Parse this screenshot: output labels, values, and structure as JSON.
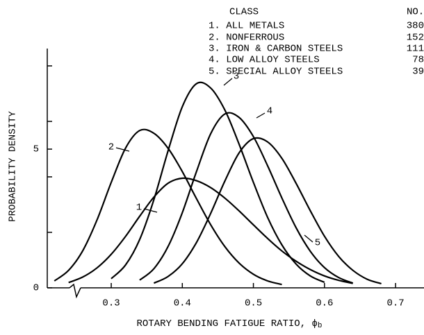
{
  "chart_data": {
    "type": "line",
    "xlabel": "ROTARY BENDING FATIGUE RATIO, ϕ",
    "xlabel_subscript": "b",
    "ylabel": "PROBABILITY DENSITY",
    "legend_header": {
      "class": "CLASS",
      "count": "NO."
    },
    "x": [
      0.22,
      0.24,
      0.26,
      0.28,
      0.3,
      0.32,
      0.34,
      0.36,
      0.38,
      0.4,
      0.42,
      0.44,
      0.46,
      0.48,
      0.5,
      0.52,
      0.54,
      0.56,
      0.58,
      0.6,
      0.62,
      0.64,
      0.66,
      0.68,
      0.7
    ],
    "series": [
      {
        "name": "1. ALL METALS",
        "curve_label": "1",
        "count": 380,
        "color": "#000000",
        "values": [
          null,
          0.19,
          0.39,
          0.72,
          1.21,
          1.85,
          2.58,
          3.27,
          3.77,
          3.95,
          3.86,
          3.61,
          3.23,
          2.77,
          2.27,
          1.78,
          1.33,
          0.96,
          0.66,
          0.43,
          0.27,
          0.16,
          null,
          null,
          null
        ]
      },
      {
        "name": "2. NONFERROUS",
        "curve_label": "2",
        "count": 152,
        "color": "#000000",
        "values": [
          0.25,
          0.63,
          1.34,
          2.45,
          3.8,
          5.03,
          5.67,
          5.57,
          5.03,
          4.19,
          3.21,
          2.27,
          1.48,
          0.89,
          0.49,
          0.25,
          0.12,
          null,
          null,
          null,
          null,
          null,
          null,
          null,
          null
        ]
      },
      {
        "name": "3. IRON & CARBON STEELS",
        "curve_label": "3",
        "count": 111,
        "color": "#000000",
        "values": [
          null,
          null,
          null,
          null,
          0.33,
          0.82,
          1.74,
          3.18,
          4.94,
          6.53,
          7.36,
          7.2,
          6.4,
          5.17,
          3.8,
          2.54,
          1.55,
          0.86,
          0.43,
          0.2,
          null,
          null,
          null,
          null,
          null
        ]
      },
      {
        "name": "4. LOW ALLOY STEELS",
        "curve_label": "4",
        "count": 78,
        "color": "#000000",
        "values": [
          null,
          null,
          null,
          null,
          null,
          null,
          0.28,
          0.69,
          1.49,
          2.71,
          4.2,
          5.56,
          6.27,
          6.14,
          5.45,
          4.4,
          3.24,
          2.17,
          1.32,
          0.73,
          0.37,
          0.17,
          null,
          null,
          null
        ]
      },
      {
        "name": "5. SPECIAL ALLOY STEELS",
        "curve_label": "5",
        "count": 39,
        "color": "#000000",
        "values": [
          null,
          null,
          null,
          null,
          null,
          null,
          null,
          0.17,
          0.41,
          0.87,
          1.64,
          2.69,
          3.86,
          4.87,
          5.38,
          5.26,
          4.67,
          3.77,
          2.78,
          1.86,
          1.13,
          0.63,
          0.31,
          0.15,
          null
        ]
      }
    ],
    "xlim": [
      0.21,
      0.74
    ],
    "xticks": [
      0.3,
      0.4,
      0.5,
      0.6,
      0.7
    ],
    "ylim": [
      0,
      8.6
    ],
    "yticks": [
      0,
      5
    ],
    "yminor_ticks": [
      2,
      4,
      6,
      8
    ]
  }
}
